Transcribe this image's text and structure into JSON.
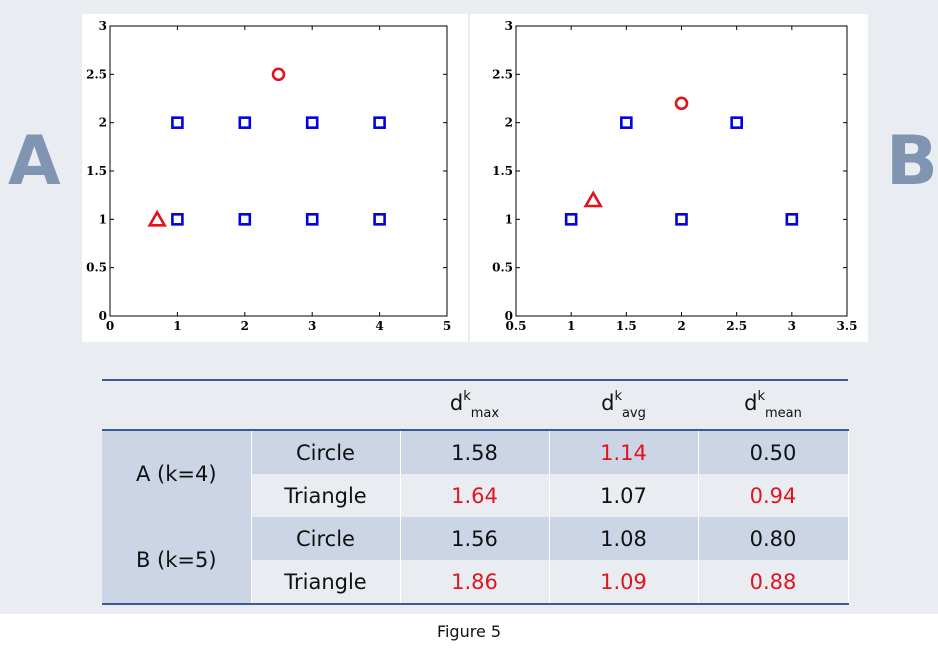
{
  "panel_labels": {
    "a": "A",
    "b": "B"
  },
  "chart_data": [
    {
      "id": "A",
      "type": "scatter",
      "title": "",
      "xlabel": "",
      "ylabel": "",
      "xlim": [
        0,
        5
      ],
      "ylim": [
        0,
        3
      ],
      "x_ticks": [
        "0",
        "1",
        "2",
        "3",
        "4",
        "5"
      ],
      "y_ticks": [
        "0",
        "0.5",
        "1",
        "1.5",
        "2",
        "2.5",
        "3"
      ],
      "x_tick_values": [
        0,
        1,
        2,
        3,
        4,
        5
      ],
      "y_tick_values": [
        0,
        0.5,
        1,
        1.5,
        2,
        2.5,
        3
      ],
      "grid": false,
      "series": [
        {
          "marker": "square",
          "color": "#0000e0",
          "points": [
            [
              1,
              1
            ],
            [
              2,
              1
            ],
            [
              3,
              1
            ],
            [
              4,
              1
            ],
            [
              1,
              2
            ],
            [
              2,
              2
            ],
            [
              3,
              2
            ],
            [
              4,
              2
            ]
          ]
        },
        {
          "marker": "circle",
          "color": "#e0141e",
          "points": [
            [
              2.5,
              2.5
            ]
          ]
        },
        {
          "marker": "triangle",
          "color": "#e0141e",
          "points": [
            [
              0.7,
              1.0
            ]
          ]
        }
      ]
    },
    {
      "id": "B",
      "type": "scatter",
      "title": "",
      "xlabel": "",
      "ylabel": "",
      "xlim": [
        0.5,
        3.5
      ],
      "ylim": [
        0,
        3
      ],
      "x_ticks": [
        "0.5",
        "1",
        "1.5",
        "2",
        "2.5",
        "3",
        "3.5"
      ],
      "y_ticks": [
        "0",
        "0.5",
        "1",
        "1.5",
        "2",
        "2.5",
        "3"
      ],
      "x_tick_values": [
        0.5,
        1,
        1.5,
        2,
        2.5,
        3,
        3.5
      ],
      "y_tick_values": [
        0,
        0.5,
        1,
        1.5,
        2,
        2.5,
        3
      ],
      "grid": false,
      "series": [
        {
          "marker": "square",
          "color": "#0000e0",
          "points": [
            [
              1,
              1
            ],
            [
              2,
              1
            ],
            [
              3,
              1
            ],
            [
              1.5,
              2
            ],
            [
              2.5,
              2
            ]
          ]
        },
        {
          "marker": "circle",
          "color": "#e0141e",
          "points": [
            [
              2.0,
              2.2
            ]
          ]
        },
        {
          "marker": "triangle",
          "color": "#e0141e",
          "points": [
            [
              1.2,
              1.2
            ]
          ]
        }
      ]
    }
  ],
  "table": {
    "headers": [
      {
        "base": "d",
        "sup": "k",
        "sub": "max"
      },
      {
        "base": "d",
        "sup": "k",
        "sub": "avg"
      },
      {
        "base": "d",
        "sup": "k",
        "sub": "mean"
      }
    ],
    "groups": [
      {
        "label": "A (k=4)",
        "rows": [
          {
            "label": "Circle",
            "values": [
              "1.58",
              "1.14",
              "0.50"
            ]
          },
          {
            "label": "Triangle",
            "values": [
              "1.64",
              "1.07",
              "0.94"
            ]
          }
        ]
      },
      {
        "label": "B (k=5)",
        "rows": [
          {
            "label": "Circle",
            "values": [
              "1.56",
              "1.08",
              "0.80"
            ]
          },
          {
            "label": "Triangle",
            "values": [
              "1.86",
              "1.09",
              "0.88"
            ]
          }
        ]
      }
    ],
    "highlight_color": "#e0141e",
    "highlighted": [
      [
        false,
        true,
        false
      ],
      [
        true,
        false,
        true
      ],
      [
        false,
        false,
        false
      ],
      [
        true,
        true,
        true
      ]
    ]
  },
  "caption": "Figure 5"
}
